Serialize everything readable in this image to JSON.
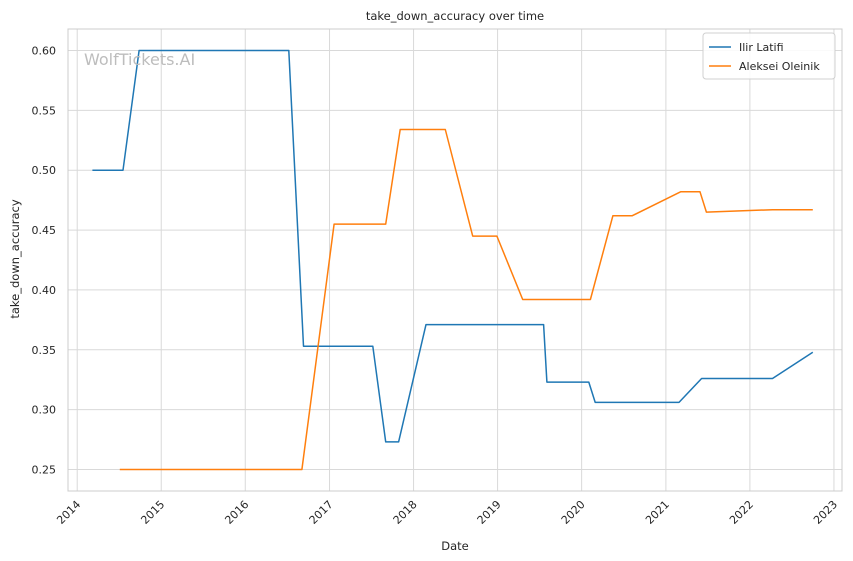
{
  "chart_data": {
    "type": "line",
    "title": "take_down_accuracy over time",
    "xlabel": "Date",
    "ylabel": "take_down_accuracy",
    "watermark": "WolfTickets.AI",
    "xlim": [
      "2013-11-22",
      "2023-02-05"
    ],
    "ylim": [
      0.232,
      0.618
    ],
    "x_ticks": [
      "2014",
      "2015",
      "2016",
      "2017",
      "2018",
      "2019",
      "2020",
      "2021",
      "2022",
      "2023"
    ],
    "y_ticks": [
      "0.25",
      "0.30",
      "0.35",
      "0.40",
      "0.45",
      "0.50",
      "0.55",
      "0.60"
    ],
    "grid": true,
    "legend_position": "top-right",
    "series": [
      {
        "name": "Ilir Latifi",
        "color": "#1f77b4",
        "points": [
          [
            "2014-03-08",
            0.5
          ],
          [
            "2014-07-19",
            0.5
          ],
          [
            "2014-09-27",
            0.6
          ],
          [
            "2016-07-08",
            0.6
          ],
          [
            "2016-09-10",
            0.353
          ],
          [
            "2017-07-08",
            0.353
          ],
          [
            "2017-09-02",
            0.273
          ],
          [
            "2017-10-28",
            0.273
          ],
          [
            "2018-02-24",
            0.371
          ],
          [
            "2019-07-20",
            0.371
          ],
          [
            "2019-08-03",
            0.323
          ],
          [
            "2020-02-01",
            0.323
          ],
          [
            "2020-02-29",
            0.306
          ],
          [
            "2021-02-27",
            0.306
          ],
          [
            "2021-06-05",
            0.326
          ],
          [
            "2022-04-09",
            0.326
          ],
          [
            "2022-10-01",
            0.348
          ]
        ]
      },
      {
        "name": "Aleksei Oleinik",
        "color": "#ff7f0e",
        "points": [
          [
            "2014-07-05",
            0.25
          ],
          [
            "2016-09-03",
            0.25
          ],
          [
            "2017-01-21",
            0.455
          ],
          [
            "2017-09-02",
            0.455
          ],
          [
            "2017-11-04",
            0.534
          ],
          [
            "2018-05-19",
            0.534
          ],
          [
            "2018-09-15",
            0.445
          ],
          [
            "2018-12-29",
            0.445
          ],
          [
            "2019-04-20",
            0.392
          ],
          [
            "2020-02-08",
            0.392
          ],
          [
            "2020-05-16",
            0.462
          ],
          [
            "2020-08-08",
            0.462
          ],
          [
            "2021-03-06",
            0.482
          ],
          [
            "2021-05-29",
            0.482
          ],
          [
            "2021-06-26",
            0.465
          ],
          [
            "2022-04-09",
            0.467
          ],
          [
            "2022-10-01",
            0.467
          ]
        ]
      }
    ]
  }
}
